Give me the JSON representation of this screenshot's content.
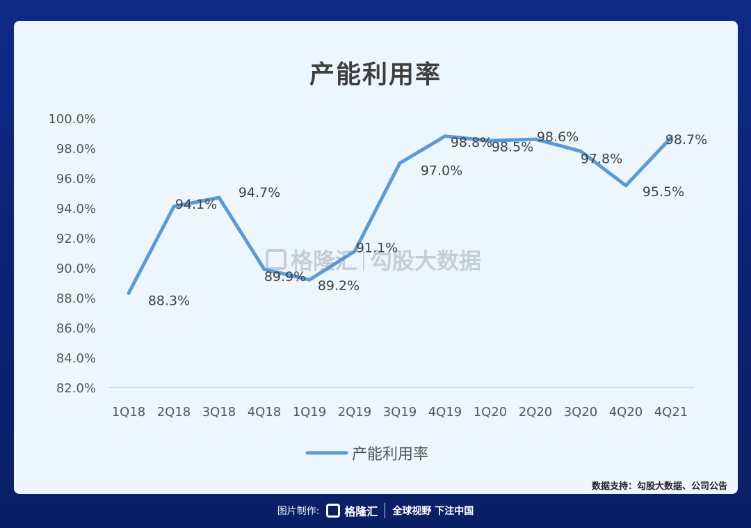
{
  "chart_data": {
    "type": "line",
    "title": "产能利用率",
    "categories": [
      "1Q18",
      "2Q18",
      "3Q18",
      "4Q18",
      "1Q19",
      "2Q19",
      "3Q19",
      "4Q19",
      "1Q20",
      "2Q20",
      "3Q20",
      "4Q20",
      "4Q21"
    ],
    "series": [
      {
        "name": "产能利用率",
        "values": [
          88.3,
          94.1,
          94.7,
          89.9,
          89.2,
          91.1,
          97.0,
          98.8,
          98.5,
          98.6,
          97.8,
          95.5,
          98.7
        ],
        "labels": [
          "88.3%",
          "94.1%",
          "94.7%",
          "89.9%",
          "89.2%",
          "91.1%",
          "97.0%",
          "98.8%",
          "98.5%",
          "98.6%",
          "97.8%",
          "95.5%",
          "98.7%"
        ],
        "color": "#5b9bd5"
      }
    ],
    "ylim": [
      82,
      100
    ],
    "yticks": [
      "82.0%",
      "84.0%",
      "86.0%",
      "88.0%",
      "90.0%",
      "92.0%",
      "94.0%",
      "96.0%",
      "98.0%",
      "100.0%"
    ],
    "xlabel": "",
    "ylabel": "",
    "grid": false,
    "legend_position": "bottom"
  },
  "watermark": {
    "brand": "格隆汇",
    "product": "勾股大数据"
  },
  "source_note": "数据支持：勾股大数据、公司公告",
  "footer": {
    "credit": "图片制作:",
    "brand": "格隆汇",
    "slogan": "全球视野 下注中国"
  }
}
